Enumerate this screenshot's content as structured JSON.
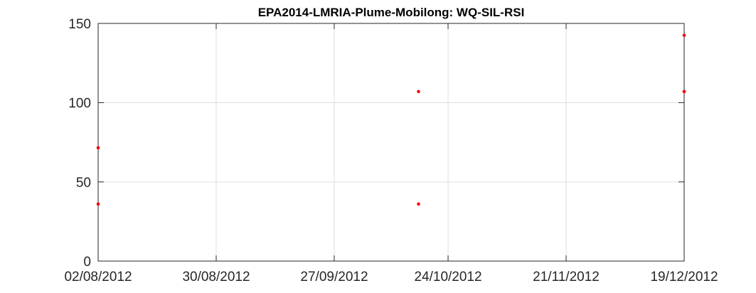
{
  "chart_data": {
    "type": "scatter",
    "title": "EPA2014-LMRIA-Plume-Mobilong: WQ-SIL-RSI",
    "xlabel": "",
    "ylabel": "",
    "x_axis_type": "date",
    "xlim": [
      "2012-08-02",
      "2012-12-19"
    ],
    "ylim": [
      0,
      150
    ],
    "x_ticks": [
      "2012-08-02",
      "2012-08-30",
      "2012-09-27",
      "2012-10-24",
      "2012-11-21",
      "2012-12-19"
    ],
    "x_tick_labels": [
      "02/08/2012",
      "30/08/2012",
      "27/09/2012",
      "24/10/2012",
      "21/11/2012",
      "19/12/2012"
    ],
    "y_ticks": [
      0,
      50,
      100,
      150
    ],
    "y_tick_labels": [
      "0",
      "50",
      "100",
      "150"
    ],
    "grid": true,
    "marker_color": "#ff0000",
    "series": [
      {
        "points": [
          {
            "x": "2012-08-02",
            "y": 71.5
          },
          {
            "x": "2012-08-02",
            "y": 36
          },
          {
            "x": "2012-10-17",
            "y": 107
          },
          {
            "x": "2012-10-17",
            "y": 36
          },
          {
            "x": "2012-12-19",
            "y": 107
          },
          {
            "x": "2012-12-19",
            "y": 107
          },
          {
            "x": "2012-12-19",
            "y": 142.5
          }
        ]
      }
    ]
  }
}
